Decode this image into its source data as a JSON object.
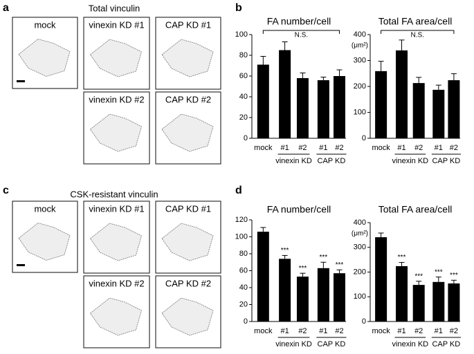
{
  "panels": [
    {
      "label": "a",
      "title": "Total vinculin",
      "images": [
        "mock",
        "vinexin KD #1",
        "CAP KD #1",
        "vinexin KD #2",
        "CAP KD #2"
      ]
    },
    {
      "label": "c",
      "title": "CSK-resistant vinculin",
      "images": [
        "mock",
        "vinexin KD #1",
        "CAP KD #1",
        "vinexin KD #2",
        "CAP KD #2"
      ]
    }
  ],
  "chart_panels": [
    "b",
    "d"
  ],
  "chart_data": [
    {
      "type": "bar",
      "title": "FA number/cell",
      "categories": [
        "mock",
        "#1",
        "#2",
        "#1",
        "#2"
      ],
      "group_labels": [
        "vinexin KD",
        "CAP KD"
      ],
      "values": [
        71,
        85,
        58,
        56,
        60
      ],
      "errors": [
        8,
        8,
        5,
        3,
        6
      ],
      "color": "#000000",
      "ylim": [
        0,
        100
      ],
      "yticks": [
        0,
        20,
        40,
        60,
        80,
        100
      ],
      "bracket_label": "N.S."
    },
    {
      "type": "bar",
      "title": "Total FA area/cell",
      "unit": "(μm²)",
      "categories": [
        "mock",
        "#1",
        "#2",
        "#1",
        "#2"
      ],
      "group_labels": [
        "vinexin KD",
        "CAP KD"
      ],
      "values": [
        259,
        339,
        213,
        187,
        224
      ],
      "errors": [
        38,
        40,
        22,
        18,
        25
      ],
      "color": "#000000",
      "ylim": [
        0,
        400
      ],
      "yticks": [
        0,
        100,
        200,
        300,
        400
      ],
      "bracket_label": "N.S."
    },
    {
      "type": "bar",
      "title": "FA number/cell",
      "categories": [
        "mock",
        "#1",
        "#2",
        "#1",
        "#2"
      ],
      "group_labels": [
        "vinexin KD",
        "CAP KD"
      ],
      "values": [
        106,
        74,
        53,
        63,
        57
      ],
      "errors": [
        5,
        4,
        4,
        7,
        4
      ],
      "color": "#000000",
      "ylim": [
        0,
        120
      ],
      "yticks": [
        0,
        20,
        40,
        60,
        80,
        100,
        120
      ],
      "value_annotations": [
        null,
        "***",
        "***",
        "***",
        "***"
      ]
    },
    {
      "type": "bar",
      "title": "Total FA area/cell",
      "unit": "(μm²)",
      "categories": [
        "mock",
        "#1",
        "#2",
        "#1",
        "#2"
      ],
      "group_labels": [
        "vinexin KD",
        "CAP KD"
      ],
      "values": [
        341,
        224,
        148,
        160,
        154
      ],
      "errors": [
        17,
        15,
        15,
        20,
        13
      ],
      "color": "#000000",
      "ylim": [
        0,
        400
      ],
      "yticks": [
        0,
        100,
        200,
        300,
        400
      ],
      "value_annotations": [
        null,
        "***",
        "***",
        "***",
        "***"
      ]
    }
  ]
}
